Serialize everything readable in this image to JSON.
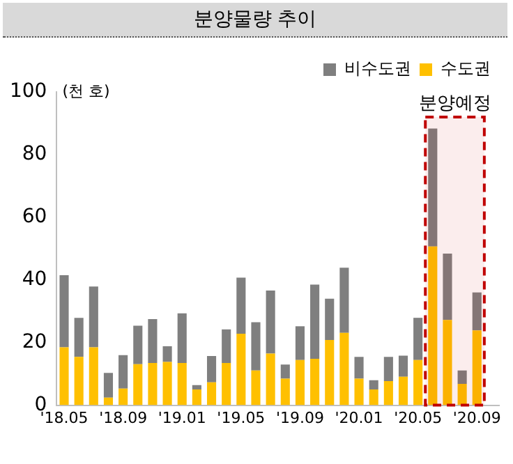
{
  "chart_data": {
    "type": "bar",
    "title": "분양물량 추이",
    "ylabel": "(천 호)",
    "stacked": true,
    "x": [
      "2018-05",
      "2018-06",
      "2018-07",
      "2018-08",
      "2018-09",
      "2018-10",
      "2018-11",
      "2018-12",
      "2019-01",
      "2019-02",
      "2019-03",
      "2019-04",
      "2019-05",
      "2019-06",
      "2019-07",
      "2019-08",
      "2019-09",
      "2019-10",
      "2019-11",
      "2019-12",
      "2020-01",
      "2020-02",
      "2020-03",
      "2020-04",
      "2020-05",
      "2020-06",
      "2020-07",
      "2020-08",
      "2020-09"
    ],
    "xlim": [
      "2018-04-16",
      "2020-10-16"
    ],
    "xticks": [
      {
        "value": "2018-05",
        "label": "'18.05"
      },
      {
        "value": "2018-09",
        "label": "'18.09"
      },
      {
        "value": "2019-01",
        "label": "'19.01"
      },
      {
        "value": "2019-05",
        "label": "'19.05"
      },
      {
        "value": "2019-09",
        "label": "'19.09"
      },
      {
        "value": "2020-01",
        "label": "'20.01"
      },
      {
        "value": "2020-05",
        "label": "'20.05"
      },
      {
        "value": "2020-09",
        "label": "'20.09"
      }
    ],
    "series": [
      {
        "name": "수도권",
        "color": "#ffc000",
        "values": [
          18.5,
          15.4,
          18.5,
          2.4,
          5.3,
          13.1,
          13.5,
          13.8,
          13.5,
          5,
          7.3,
          13.5,
          22.8,
          11.1,
          16.5,
          8.5,
          14.4,
          14.8,
          20.8,
          23.1,
          8.5,
          5,
          7.7,
          9.1,
          14.4,
          50.7,
          27.2,
          6.8,
          23.9
        ]
      },
      {
        "name": "비수도권",
        "color": "#7f7f7f",
        "values": [
          23,
          12.5,
          19.4,
          7.9,
          10.7,
          12.3,
          14,
          5,
          15.8,
          1.4,
          8.4,
          10.7,
          17.9,
          15.4,
          20.1,
          4.5,
          10.8,
          23.7,
          13.2,
          20.8,
          6.9,
          3,
          7.7,
          6.7,
          13.5,
          37.6,
          21.2,
          4.3,
          12.1
        ]
      }
    ],
    "ylim": [
      0,
      100
    ],
    "yticks": [
      0,
      20,
      40,
      60,
      80,
      100
    ],
    "grid": false,
    "legend": "top right",
    "bands": [
      {
        "axis": "x",
        "from": "2020-05-16",
        "to": "2020-09-16",
        "label": "분양예정",
        "color": "#c00000"
      }
    ]
  }
}
